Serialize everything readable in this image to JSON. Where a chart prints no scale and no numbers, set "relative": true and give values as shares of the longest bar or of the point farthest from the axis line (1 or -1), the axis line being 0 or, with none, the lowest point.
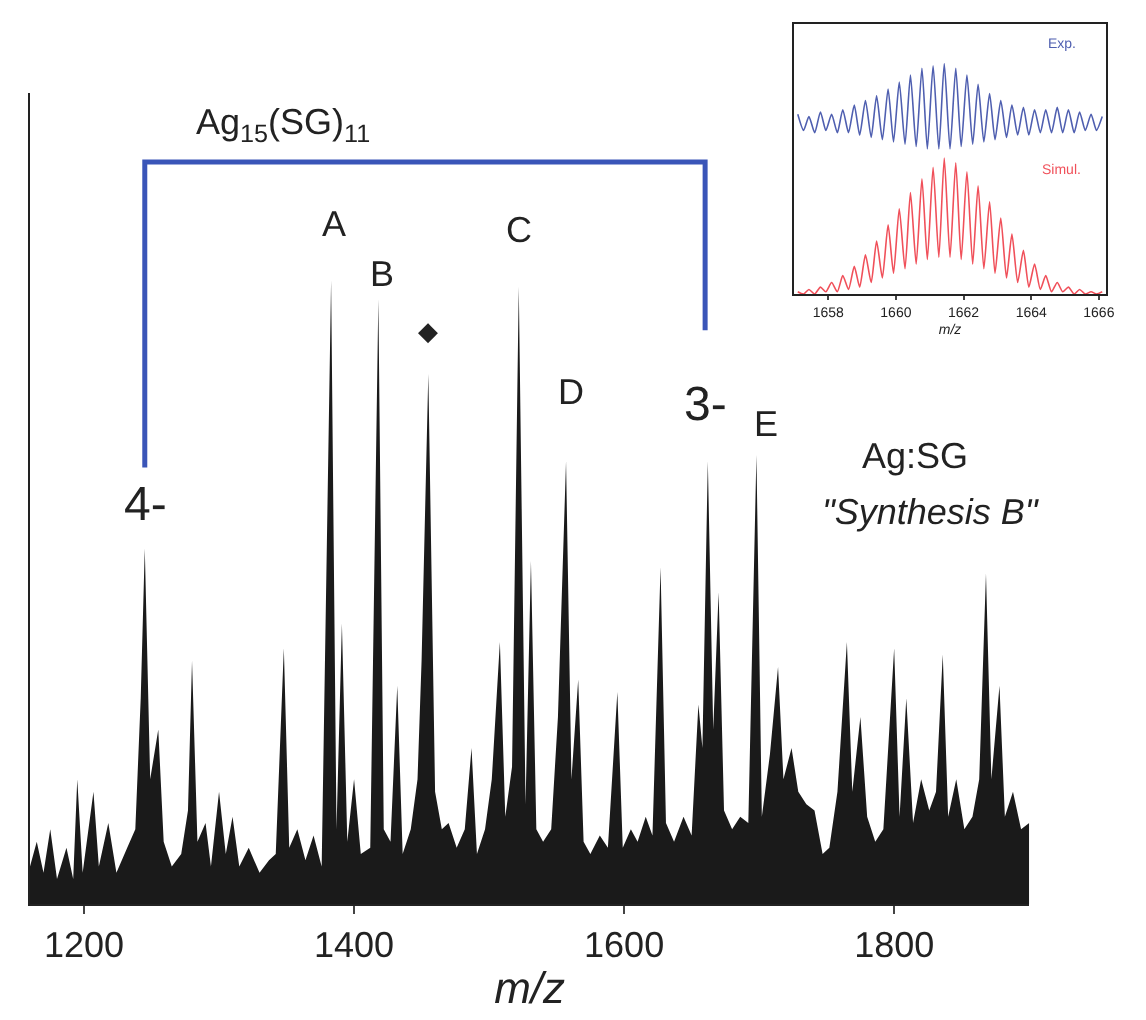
{
  "chart_data": [
    {
      "type": "area",
      "relative": true,
      "xlabel": "m/z",
      "xlim": [
        1160,
        1900
      ],
      "xticks": [
        1200,
        1400,
        1600,
        1800
      ],
      "x": [
        1160,
        1165,
        1170,
        1175,
        1180,
        1187,
        1192,
        1195,
        1199,
        1207,
        1211,
        1218,
        1224,
        1232,
        1238,
        1242,
        1245,
        1249,
        1255,
        1259,
        1265,
        1272,
        1277,
        1280,
        1284,
        1290,
        1294,
        1300,
        1305,
        1310,
        1315,
        1322,
        1330,
        1337,
        1342,
        1348,
        1352,
        1358,
        1364,
        1370,
        1376,
        1383,
        1387,
        1391,
        1395,
        1400,
        1405,
        1412,
        1418,
        1422,
        1427,
        1432,
        1436,
        1442,
        1447,
        1450,
        1455,
        1460,
        1465,
        1470,
        1476,
        1482,
        1487,
        1491,
        1497,
        1502,
        1508,
        1512,
        1517,
        1522,
        1527,
        1531,
        1535,
        1540,
        1546,
        1551,
        1557,
        1561,
        1566,
        1570,
        1575,
        1582,
        1588,
        1595,
        1599,
        1605,
        1610,
        1616,
        1621,
        1627,
        1631,
        1637,
        1644,
        1650,
        1655,
        1658,
        1662,
        1666,
        1670,
        1674,
        1680,
        1686,
        1692,
        1698,
        1702,
        1708,
        1714,
        1718,
        1724,
        1729,
        1735,
        1741,
        1747,
        1752,
        1758,
        1765,
        1769,
        1775,
        1780,
        1786,
        1792,
        1800,
        1804,
        1809,
        1814,
        1820,
        1826,
        1831,
        1836,
        1840,
        1846,
        1852,
        1858,
        1863,
        1868,
        1872,
        1878,
        1882,
        1888,
        1894,
        1900
      ],
      "series": [
        {
          "color": "#1a1a1a",
          "values": [
            0.06,
            0.1,
            0.05,
            0.12,
            0.04,
            0.09,
            0.04,
            0.2,
            0.05,
            0.18,
            0.06,
            0.13,
            0.05,
            0.09,
            0.12,
            0.33,
            0.57,
            0.2,
            0.28,
            0.1,
            0.06,
            0.08,
            0.15,
            0.39,
            0.1,
            0.13,
            0.06,
            0.18,
            0.08,
            0.14,
            0.06,
            0.09,
            0.05,
            0.07,
            0.08,
            0.41,
            0.09,
            0.12,
            0.07,
            0.11,
            0.06,
            1.0,
            0.12,
            0.45,
            0.1,
            0.2,
            0.08,
            0.09,
            0.97,
            0.12,
            0.1,
            0.35,
            0.08,
            0.12,
            0.2,
            0.39,
            0.85,
            0.18,
            0.12,
            0.13,
            0.09,
            0.12,
            0.25,
            0.08,
            0.12,
            0.2,
            0.42,
            0.14,
            0.22,
            0.99,
            0.16,
            0.55,
            0.12,
            0.1,
            0.12,
            0.3,
            0.71,
            0.2,
            0.36,
            0.1,
            0.08,
            0.11,
            0.09,
            0.34,
            0.09,
            0.12,
            0.1,
            0.14,
            0.11,
            0.54,
            0.13,
            0.1,
            0.14,
            0.11,
            0.32,
            0.25,
            0.71,
            0.28,
            0.5,
            0.15,
            0.12,
            0.14,
            0.13,
            0.72,
            0.14,
            0.24,
            0.38,
            0.2,
            0.25,
            0.18,
            0.16,
            0.15,
            0.08,
            0.09,
            0.18,
            0.42,
            0.18,
            0.3,
            0.14,
            0.1,
            0.12,
            0.41,
            0.14,
            0.33,
            0.13,
            0.2,
            0.15,
            0.18,
            0.4,
            0.14,
            0.2,
            0.12,
            0.14,
            0.2,
            0.53,
            0.2,
            0.35,
            0.14,
            0.18,
            0.12,
            0.13
          ]
        }
      ],
      "annotations": [
        "Ag$_{15}$(SG)$_{11}$",
        "4-",
        "3-",
        "A",
        "B",
        "◆",
        "C",
        "D",
        "E",
        "Ag:SG",
        "\"Synthesis B\""
      ]
    },
    {
      "type": "line",
      "relative": true,
      "xlabel": "m/z",
      "xlim": [
        1657,
        1666.2
      ],
      "xticks": [
        1658,
        1660,
        1662,
        1664,
        1666
      ],
      "x": [
        1657.1,
        1657.27,
        1657.43,
        1657.6,
        1657.77,
        1657.93,
        1658.1,
        1658.27,
        1658.43,
        1658.6,
        1658.77,
        1658.93,
        1659.1,
        1659.27,
        1659.43,
        1659.6,
        1659.77,
        1659.93,
        1660.1,
        1660.27,
        1660.43,
        1660.6,
        1660.77,
        1660.93,
        1661.1,
        1661.27,
        1661.43,
        1661.6,
        1661.77,
        1661.93,
        1662.1,
        1662.27,
        1662.43,
        1662.6,
        1662.77,
        1662.93,
        1663.1,
        1663.27,
        1663.43,
        1663.6,
        1663.77,
        1663.93,
        1664.1,
        1664.27,
        1664.43,
        1664.6,
        1664.77,
        1664.93,
        1665.1,
        1665.27,
        1665.43,
        1665.6,
        1665.77,
        1665.93,
        1666.1
      ],
      "series": [
        {
          "name": "Exp.",
          "color": "#4f5fb0",
          "values": [
            0.78,
            0.71,
            0.77,
            0.7,
            0.79,
            0.71,
            0.78,
            0.7,
            0.8,
            0.7,
            0.82,
            0.69,
            0.84,
            0.68,
            0.86,
            0.67,
            0.89,
            0.66,
            0.92,
            0.65,
            0.95,
            0.64,
            0.98,
            0.63,
            0.99,
            0.63,
            1.0,
            0.63,
            0.98,
            0.64,
            0.95,
            0.65,
            0.91,
            0.66,
            0.87,
            0.67,
            0.84,
            0.68,
            0.82,
            0.69,
            0.81,
            0.69,
            0.8,
            0.7,
            0.8,
            0.7,
            0.81,
            0.7,
            0.8,
            0.7,
            0.79,
            0.71,
            0.78,
            0.71,
            0.77
          ]
        },
        {
          "name": "Simul.",
          "color": "#f0505a",
          "values": [
            0.01,
            0.0,
            0.02,
            0.0,
            0.03,
            0.01,
            0.05,
            0.01,
            0.08,
            0.02,
            0.12,
            0.03,
            0.17,
            0.05,
            0.23,
            0.07,
            0.3,
            0.09,
            0.37,
            0.11,
            0.44,
            0.13,
            0.5,
            0.15,
            0.55,
            0.16,
            0.59,
            0.16,
            0.57,
            0.15,
            0.53,
            0.13,
            0.47,
            0.11,
            0.4,
            0.09,
            0.33,
            0.07,
            0.26,
            0.05,
            0.19,
            0.03,
            0.13,
            0.02,
            0.08,
            0.01,
            0.05,
            0.01,
            0.03,
            0.0,
            0.02,
            0.0,
            0.01,
            0.0,
            0.01
          ]
        }
      ]
    }
  ]
}
